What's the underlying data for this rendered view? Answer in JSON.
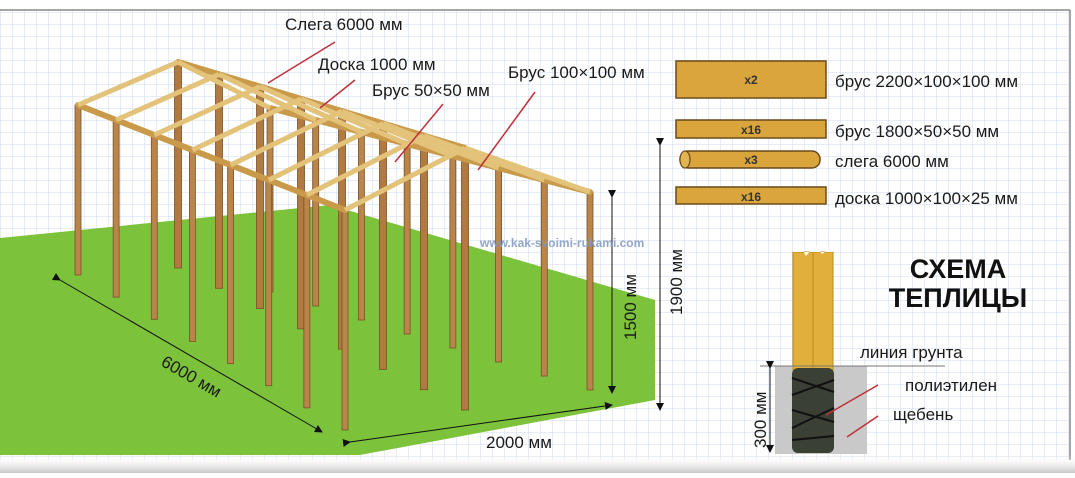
{
  "callouts": {
    "slega": "Слега 6000 мм",
    "board": "Доска 1000 мм",
    "beam50": "Брус 50×50 мм",
    "beam100": "Брус 100×100 мм"
  },
  "dimensions": {
    "length": "6000 мм",
    "width": "2000 мм",
    "side_height": "1500 мм",
    "ridge_height": "1900 мм",
    "depth": "300 мм"
  },
  "materials": [
    {
      "count": "x2",
      "label": "брус 2200×100×100 мм",
      "shape": "beam"
    },
    {
      "count": "x16",
      "label": "брус 1800×50×50 мм",
      "shape": "beam"
    },
    {
      "count": "x3",
      "label": "слега 6000 мм",
      "shape": "log"
    },
    {
      "count": "x16",
      "label": "доска 1000×100×25 мм",
      "shape": "board"
    }
  ],
  "title": {
    "line1": "СХЕМА",
    "line2": "ТЕПЛИЦЫ"
  },
  "post_detail": {
    "ground_line": "линия грунта",
    "polyethylene": "полиэтилен",
    "gravel": "щебень"
  },
  "watermark": "www.kak-svoimi-rukami.com",
  "colors": {
    "wood": "#d9a53c",
    "post": "#b9854a",
    "ground": "#7cc23a",
    "callout_line": "#c0303a",
    "grid": "#c9d6e6"
  }
}
